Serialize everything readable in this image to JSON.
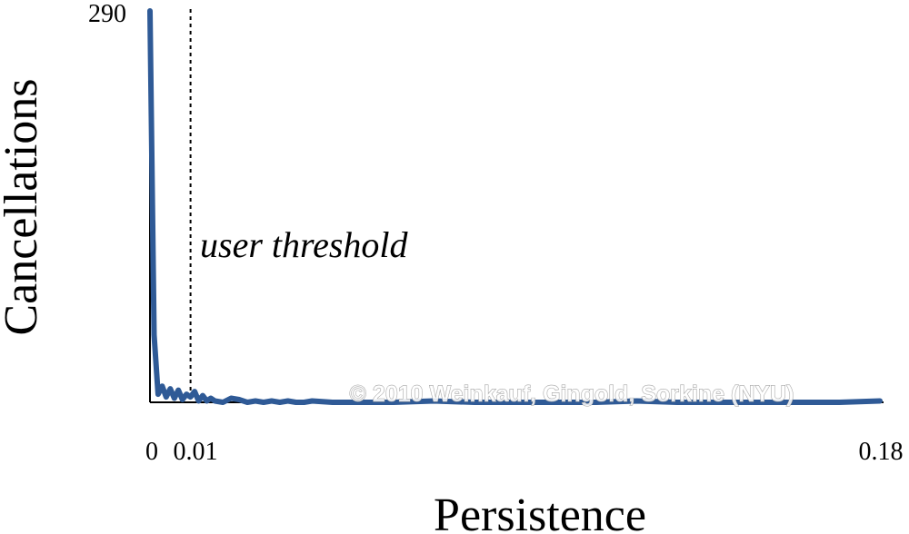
{
  "chart_data": {
    "type": "line",
    "xlabel": "Persistence",
    "ylabel": "Cancellations",
    "xlim": [
      0,
      0.18
    ],
    "ylim": [
      0,
      290
    ],
    "grid": false,
    "x_ticks": [
      {
        "value": 0,
        "label": "0"
      },
      {
        "value": 0.01,
        "label": "0.01"
      },
      {
        "value": 0.18,
        "label": "0.18"
      }
    ],
    "y_ticks": [
      {
        "value": 290,
        "label": "290"
      }
    ],
    "series": [
      {
        "color": "#2f5a96",
        "x": [
          0.0,
          0.001,
          0.002,
          0.003,
          0.004,
          0.005,
          0.006,
          0.007,
          0.008,
          0.009,
          0.01,
          0.011,
          0.012,
          0.013,
          0.014,
          0.015,
          0.016,
          0.018,
          0.02,
          0.022,
          0.024,
          0.026,
          0.028,
          0.03,
          0.032,
          0.034,
          0.036,
          0.038,
          0.04,
          0.045,
          0.05,
          0.06,
          0.07,
          0.08,
          0.09,
          0.1,
          0.11,
          0.12,
          0.13,
          0.14,
          0.15,
          0.16,
          0.17,
          0.18
        ],
        "y": [
          290,
          50,
          6,
          12,
          4,
          10,
          3,
          9,
          2,
          6,
          4,
          8,
          1,
          5,
          1,
          3,
          1,
          0,
          3,
          2,
          0,
          1,
          0,
          1,
          0,
          1,
          0,
          0,
          1,
          0,
          0,
          0,
          1,
          0,
          0,
          0,
          0,
          1,
          0,
          0,
          0,
          0,
          0,
          1
        ]
      }
    ],
    "annotations": [
      {
        "type": "vline",
        "x": 0.01,
        "style": "dotted",
        "label": "user threshold"
      }
    ],
    "watermark": "© 2010 Weinkauf, Gingold, Sorkine (NYU)"
  }
}
